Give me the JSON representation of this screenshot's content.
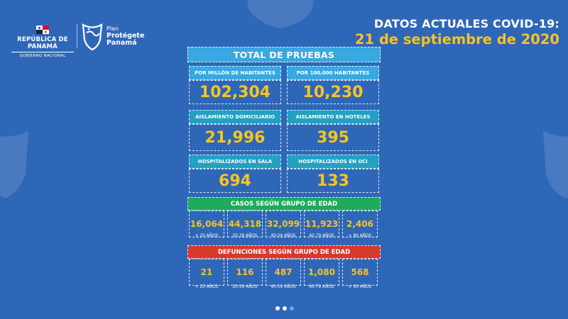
{
  "header": {
    "gov_name": "REPÚBLICA DE PANAMÁ",
    "gov_sub": "GOBIERNO NACIONAL",
    "plan_label": "Plan",
    "plan_name_1": "Protégete",
    "plan_name_2": "Panamá",
    "title_line1": "DATOS ACTUALES COVID-19:",
    "title_line2": "21 de septiembre de 2020"
  },
  "colors": {
    "background": "#2f67b8",
    "accent_yellow": "#f7c51e",
    "label_blue": "#38a8e0",
    "label_teal": "#23a0c2",
    "cases_green": "#1dab5a",
    "deaths_red": "#d63a2a"
  },
  "tests": {
    "title": "TOTAL DE PRUEBAS",
    "per_million_label": "POR MILLÓN DE HABITANTES",
    "per_million_value": "102,304",
    "per_100k_label": "POR 100,000 HABITANTES",
    "per_100k_value": "10,230"
  },
  "isolation": {
    "home_label": "AISLAMIENTO DOMICILIARIO",
    "home_value": "21,996",
    "hotel_label": "AISLAMIENTO EN HOTELES",
    "hotel_value": "395"
  },
  "hospital": {
    "ward_label": "HOSPITALIZADOS EN SALA",
    "ward_value": "694",
    "icu_label": "HOSPITALIZADOS EN UCI",
    "icu_value": "133"
  },
  "cases_by_age": {
    "title": "CASOS SEGÚN GRUPO DE EDAD",
    "groups": [
      {
        "value": "16,064",
        "label": "< 20 AÑOS"
      },
      {
        "value": "44,318",
        "label": "20-39 AÑOS"
      },
      {
        "value": "32,099",
        "label": "40-59 AÑOS"
      },
      {
        "value": "11,923",
        "label": "60-79 AÑOS"
      },
      {
        "value": "2,406",
        "label": "> 80 AÑOS"
      }
    ]
  },
  "deaths_by_age": {
    "title": "DEFUNCIONES SEGÚN GRUPO DE EDAD",
    "groups": [
      {
        "value": "21",
        "label": "< 20 AÑOS"
      },
      {
        "value": "116",
        "label": "20-39 AÑOS"
      },
      {
        "value": "487",
        "label": "40-59 AÑOS"
      },
      {
        "value": "1,080",
        "label": "60-79 AÑOS"
      },
      {
        "value": "568",
        "label": "> 80 AÑOS"
      }
    ]
  },
  "pagination": {
    "total": 3,
    "active": 1
  },
  "icons": [
    "panama-flag-icon",
    "shield-logo-icon"
  ]
}
